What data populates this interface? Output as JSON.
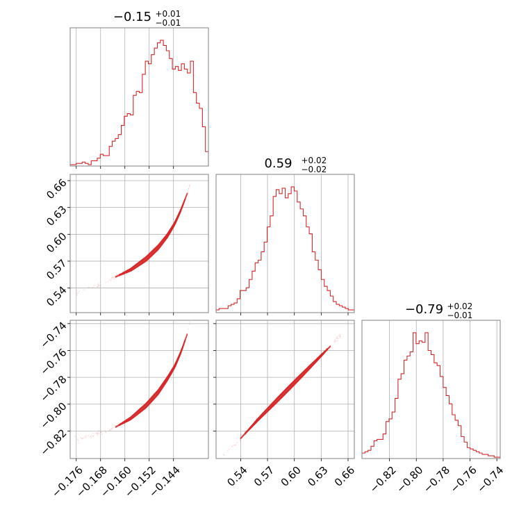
{
  "colors": {
    "series": "#d62728",
    "grid": "#b0b0b0",
    "frame": "#808080"
  },
  "chart_data": [
    {
      "type": "corner",
      "params": [
        {
          "title": {
            "main": "−0.15",
            "plus": "+0.01",
            "minus": "−0.01"
          },
          "range": [
            -0.178,
            -0.1325
          ],
          "ticks": [
            -0.176,
            -0.168,
            -0.16,
            -0.152,
            -0.144
          ],
          "tick_labels": [
            "−0.176",
            "−0.168",
            "−0.160",
            "−0.152",
            "−0.144"
          ]
        },
        {
          "title": {
            "main": "0.59",
            "plus": "+0.02",
            "minus": "−0.02"
          },
          "range": [
            0.5125,
            0.667
          ],
          "ticks": [
            0.54,
            0.57,
            0.6,
            0.63,
            0.66
          ],
          "tick_labels": [
            "0.54",
            "0.57",
            "0.60",
            "0.63",
            "0.66"
          ]
        },
        {
          "title": {
            "main": "−0.79",
            "plus": "+0.02",
            "minus": "−0.01"
          },
          "range": [
            -0.8405,
            -0.7375
          ],
          "ticks": [
            -0.82,
            -0.8,
            -0.78,
            -0.76,
            -0.74
          ],
          "tick_labels": [
            "−0.82",
            "−0.80",
            "−0.78",
            "−0.76",
            "−0.74"
          ]
        }
      ]
    },
    {
      "type": "histogram",
      "panel": "param 1 marginal",
      "bins": 46,
      "counts": [
        1,
        1,
        2,
        2,
        3,
        2,
        1,
        4,
        4,
        6,
        9,
        8,
        8,
        15,
        19,
        21,
        24,
        31,
        38,
        40,
        39,
        54,
        57,
        56,
        70,
        80,
        78,
        85,
        90,
        94,
        96,
        92,
        88,
        82,
        74,
        76,
        73,
        78,
        74,
        71,
        80,
        56,
        48,
        44,
        30,
        11
      ]
    },
    {
      "type": "histogram",
      "panel": "param 2 marginal",
      "bins": 46,
      "counts": [
        2,
        3,
        3,
        3,
        5,
        6,
        7,
        10,
        16,
        16,
        18,
        24,
        30,
        36,
        38,
        44,
        51,
        62,
        70,
        84,
        89,
        86,
        90,
        83,
        86,
        91,
        88,
        80,
        75,
        70,
        62,
        57,
        44,
        38,
        31,
        24,
        19,
        16,
        12,
        8,
        6,
        5,
        4,
        3,
        2,
        2
      ]
    },
    {
      "type": "histogram",
      "panel": "param 3 marginal",
      "bins": 46,
      "counts": [
        4,
        5,
        6,
        9,
        13,
        14,
        14,
        18,
        27,
        29,
        34,
        44,
        58,
        62,
        72,
        75,
        78,
        92,
        84,
        86,
        85,
        92,
        79,
        76,
        70,
        68,
        60,
        52,
        46,
        40,
        32,
        28,
        24,
        16,
        12,
        8,
        7,
        6,
        5,
        4,
        3,
        3,
        2,
        2,
        1,
        1
      ]
    },
    {
      "type": "scatter",
      "panel": "param 1 vs param 2",
      "trend": [
        [
          -0.1765,
          0.5335
        ],
        [
          -0.168,
          0.5435
        ],
        [
          -0.163,
          0.5525
        ],
        [
          -0.158,
          0.5605
        ],
        [
          -0.153,
          0.5725
        ],
        [
          -0.149,
          0.5855
        ],
        [
          -0.146,
          0.5985
        ],
        [
          -0.1435,
          0.6125
        ],
        [
          -0.1415,
          0.6275
        ],
        [
          -0.1395,
          0.6455
        ],
        [
          -0.1385,
          0.657
        ]
      ]
    },
    {
      "type": "scatter",
      "panel": "param 1 vs param 3",
      "trend": [
        [
          -0.1765,
          -0.8265
        ],
        [
          -0.168,
          -0.8215
        ],
        [
          -0.163,
          -0.817
        ],
        [
          -0.158,
          -0.8105
        ],
        [
          -0.153,
          -0.801
        ],
        [
          -0.149,
          -0.791
        ],
        [
          -0.146,
          -0.781
        ],
        [
          -0.1435,
          -0.7715
        ],
        [
          -0.1415,
          -0.761
        ],
        [
          -0.1395,
          -0.748
        ],
        [
          -0.1385,
          -0.738
        ]
      ]
    },
    {
      "type": "scatter",
      "panel": "param 2 vs param 3",
      "trend": [
        [
          0.5195,
          -0.8395
        ],
        [
          0.54,
          -0.8255
        ],
        [
          0.56,
          -0.811
        ],
        [
          0.58,
          -0.7975
        ],
        [
          0.6,
          -0.784
        ],
        [
          0.62,
          -0.7705
        ],
        [
          0.64,
          -0.757
        ],
        [
          0.654,
          -0.7465
        ]
      ]
    }
  ]
}
